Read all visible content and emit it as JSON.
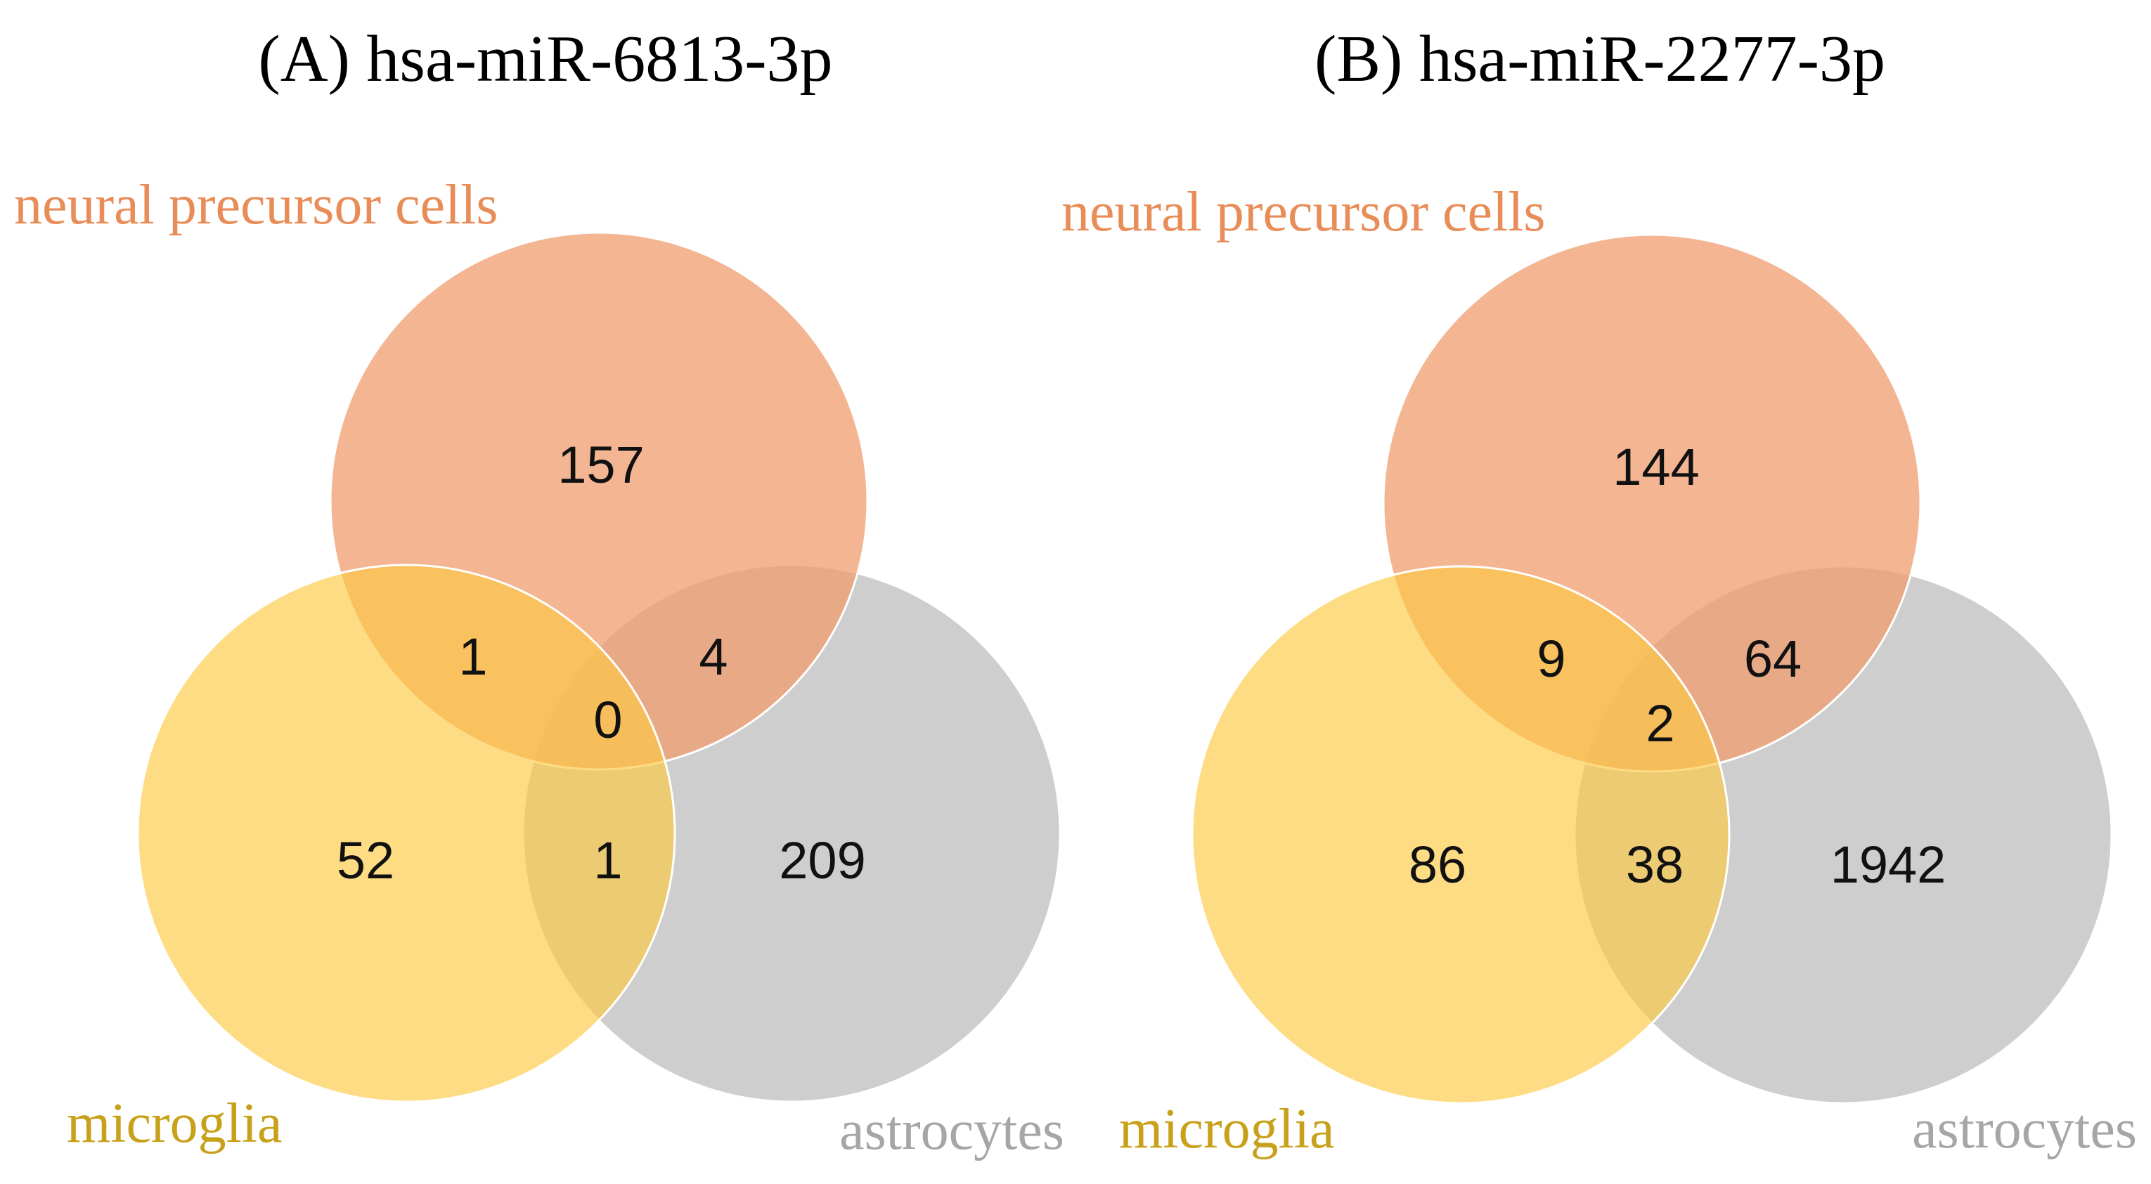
{
  "figure": {
    "colors": {
      "neural_precursor": "#ef9c6e",
      "microglia": "#fdc942",
      "astrocytes": "#bdbdbd",
      "neural_label": "#e98d58",
      "microglia_label": "#c8a11a",
      "astrocytes_label": "#a6a6a6",
      "circle_stroke": "#ffffff"
    },
    "panels": [
      {
        "title": "(A) hsa-miR-6813-3p",
        "sets": {
          "neural": "neural precursor cells",
          "microglia": "microglia",
          "astrocytes": "astrocytes"
        },
        "counts": {
          "neural_only": "157",
          "neural_microglia": "1",
          "neural_astrocytes": "4",
          "all_three": "0",
          "microglia_only": "52",
          "microglia_astrocytes": "1",
          "astrocytes_only": "209"
        }
      },
      {
        "title": "(B) hsa-miR-2277-3p",
        "sets": {
          "neural": "neural precursor cells",
          "microglia": "microglia",
          "astrocytes": "astrocytes"
        },
        "counts": {
          "neural_only": "144",
          "neural_microglia": "9",
          "neural_astrocytes": "64",
          "all_three": "2",
          "microglia_only": "86",
          "microglia_astrocytes": "38",
          "astrocytes_only": "1942"
        }
      }
    ]
  }
}
